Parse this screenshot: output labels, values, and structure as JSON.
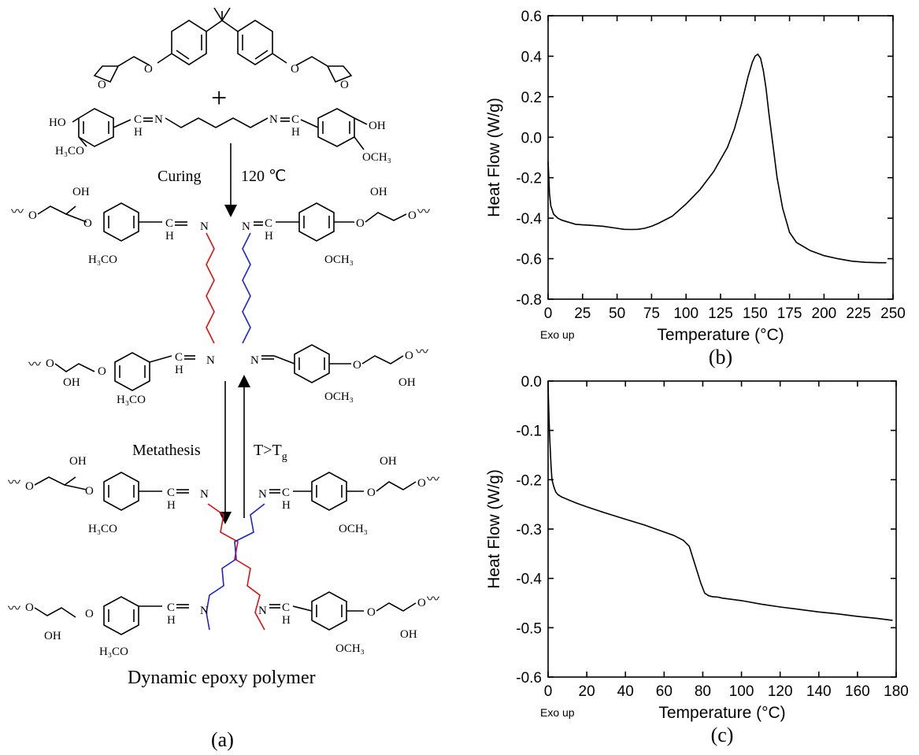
{
  "scheme": {
    "plus": "+",
    "curing": "Curing",
    "temperature": "120 ℃",
    "metathesis": "Metathesis",
    "condition_main": "T>T",
    "condition_sub": "g",
    "product": "Dynamic epoxy polymer",
    "panel_label": "(a)",
    "atoms": {
      "ho": "HO",
      "oh": "OH",
      "o": "O",
      "n": "N",
      "c_eq": "C",
      "h": "H",
      "h3co": "H₃CO",
      "och3": "OCH₃",
      "wavy": "〰"
    }
  },
  "chart_data": [
    {
      "type": "line",
      "panel_label": "(b)",
      "xlabel": "Temperature (°C)",
      "ylabel": "Heat Flow (W/g)",
      "exo_label": "Exo up",
      "xlim": [
        0,
        250
      ],
      "ylim": [
        -0.8,
        0.6
      ],
      "xticks": [
        0,
        25,
        50,
        75,
        100,
        125,
        150,
        175,
        200,
        225,
        250
      ],
      "yticks": [
        -0.8,
        -0.6,
        -0.4,
        -0.2,
        0.0,
        0.2,
        0.4,
        0.6
      ],
      "ytick_labels": [
        "-0.8",
        "-0.6",
        "-0.4",
        "-0.2",
        "0.0",
        "0.2",
        "0.4",
        "0.6"
      ],
      "x": [
        0,
        0.5,
        1,
        2,
        4,
        7,
        10,
        15,
        20,
        25,
        30,
        40,
        50,
        55,
        60,
        65,
        70,
        75,
        80,
        90,
        100,
        110,
        120,
        130,
        135,
        140,
        145,
        148,
        150,
        152,
        154,
        156,
        158,
        160,
        163,
        166,
        170,
        175,
        180,
        190,
        200,
        210,
        220,
        230,
        240,
        245
      ],
      "y": [
        -0.12,
        -0.2,
        -0.28,
        -0.34,
        -0.38,
        -0.4,
        -0.41,
        -0.42,
        -0.43,
        -0.433,
        -0.435,
        -0.44,
        -0.45,
        -0.455,
        -0.456,
        -0.455,
        -0.45,
        -0.44,
        -0.425,
        -0.39,
        -0.33,
        -0.26,
        -0.17,
        -0.05,
        0.04,
        0.16,
        0.3,
        0.37,
        0.4,
        0.41,
        0.39,
        0.33,
        0.24,
        0.12,
        -0.04,
        -0.2,
        -0.35,
        -0.47,
        -0.52,
        -0.56,
        -0.585,
        -0.6,
        -0.612,
        -0.618,
        -0.62,
        -0.62
      ]
    },
    {
      "type": "line",
      "panel_label": "(c)",
      "xlabel": "Temperature (°C)",
      "ylabel": "Heat Flow (W/g)",
      "exo_label": "Exo up",
      "xlim": [
        0,
        180
      ],
      "ylim": [
        -0.6,
        0.0
      ],
      "xticks": [
        0,
        20,
        40,
        60,
        80,
        100,
        120,
        140,
        160,
        180
      ],
      "yticks": [
        -0.6,
        -0.5,
        -0.4,
        -0.3,
        -0.2,
        -0.1,
        0.0
      ],
      "ytick_labels": [
        "-0.6",
        "-0.5",
        "-0.4",
        "-0.3",
        "-0.2",
        "-0.1",
        "0.0"
      ],
      "x": [
        0,
        0.3,
        0.7,
        1,
        1.5,
        2,
        3,
        4,
        5,
        7,
        10,
        15,
        20,
        30,
        40,
        50,
        60,
        65,
        70,
        73,
        75,
        77,
        79,
        81,
        83,
        85,
        88,
        90,
        100,
        110,
        120,
        130,
        140,
        150,
        160,
        170,
        178
      ],
      "y": [
        -0.01,
        -0.05,
        -0.1,
        -0.13,
        -0.17,
        -0.2,
        -0.215,
        -0.225,
        -0.23,
        -0.235,
        -0.24,
        -0.248,
        -0.255,
        -0.268,
        -0.28,
        -0.292,
        -0.306,
        -0.313,
        -0.323,
        -0.335,
        -0.36,
        -0.385,
        -0.41,
        -0.43,
        -0.435,
        -0.437,
        -0.438,
        -0.44,
        -0.445,
        -0.452,
        -0.458,
        -0.463,
        -0.468,
        -0.472,
        -0.477,
        -0.481,
        -0.485
      ]
    }
  ]
}
